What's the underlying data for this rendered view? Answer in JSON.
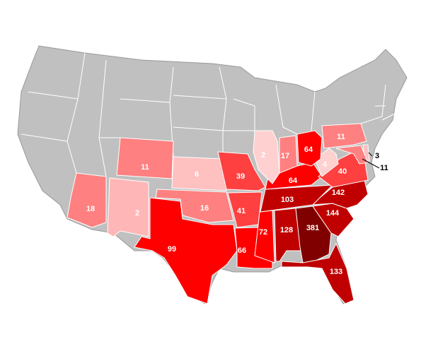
{
  "map": {
    "regions": [
      {
        "value": 18,
        "color": "#ff8080"
      },
      {
        "value": 2,
        "color": "#ffb6b6"
      },
      {
        "value": 11,
        "color": "#ff8080"
      },
      {
        "value": 6,
        "color": "#ffc0c0"
      },
      {
        "value": 16,
        "color": "#ff8080"
      },
      {
        "value": 99,
        "color": "#ff0000"
      },
      {
        "value": 39,
        "color": "#ff4040"
      },
      {
        "value": 41,
        "color": "#ff4040"
      },
      {
        "value": 66,
        "color": "#ff0000"
      },
      {
        "value": 72,
        "color": "#ff0000"
      },
      {
        "value": 128,
        "color": "#c00000"
      },
      {
        "value": 381,
        "color": "#800000"
      },
      {
        "value": 133,
        "color": "#c00000"
      },
      {
        "value": 144,
        "color": "#c00000"
      },
      {
        "value": 142,
        "color": "#c00000"
      },
      {
        "value": 103,
        "color": "#c00000"
      },
      {
        "value": 64,
        "color": "#ff0000"
      },
      {
        "value": 40,
        "color": "#ff4040"
      },
      {
        "value": 4,
        "color": "#ffd0d0"
      },
      {
        "value": 64,
        "color": "#ff0000"
      },
      {
        "value": 17,
        "color": "#ff8080"
      },
      {
        "value": 2,
        "color": "#ffd0d0"
      },
      {
        "value": 11,
        "color": "#ff8080"
      },
      {
        "value": 3,
        "color": "#ffc0c0"
      },
      {
        "value": 11,
        "color": "#ff8080"
      }
    ]
  }
}
